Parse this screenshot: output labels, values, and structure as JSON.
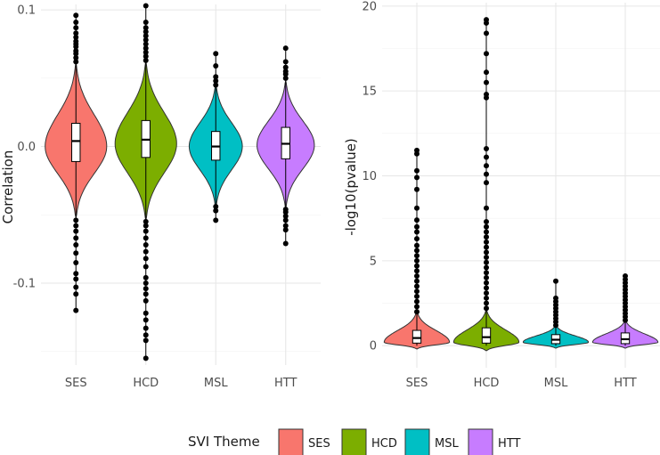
{
  "chart_data": [
    {
      "type": "violin",
      "panel": "left",
      "title": "",
      "xlabel": "",
      "ylabel": "Correlation",
      "ylim": [
        -0.16,
        0.104
      ],
      "yticks": [
        -0.1,
        0.0,
        0.1
      ],
      "ytick_labels": [
        "-0.1",
        "0.0",
        "0.1"
      ],
      "categories": [
        "SES",
        "HCD",
        "MSL",
        "HTT"
      ],
      "series": [
        {
          "name": "SES",
          "whisker_low": -0.052,
          "q1": -0.011,
          "median": 0.004,
          "q3": 0.017,
          "whisker_high": 0.059,
          "violin_min": -0.052,
          "violin_max": 0.061,
          "violin_peak": 0.0,
          "violin_half_width": 0.44,
          "outliers": [
            -0.12,
            -0.108,
            -0.103,
            -0.097,
            -0.093,
            -0.085,
            -0.078,
            -0.072,
            -0.067,
            -0.062,
            -0.058,
            -0.054,
            0.062,
            0.065,
            0.068,
            0.07,
            0.073,
            0.075,
            0.077,
            0.08,
            0.083,
            0.087,
            0.091,
            0.096
          ]
        },
        {
          "name": "HCD",
          "whisker_low": -0.053,
          "q1": -0.008,
          "median": 0.005,
          "q3": 0.019,
          "whisker_high": 0.06,
          "violin_min": -0.054,
          "violin_max": 0.062,
          "violin_peak": 0.002,
          "violin_half_width": 0.44,
          "outliers": [
            -0.155,
            -0.142,
            -0.138,
            -0.133,
            -0.127,
            -0.122,
            -0.113,
            -0.108,
            -0.104,
            -0.1,
            -0.096,
            -0.088,
            -0.082,
            -0.077,
            -0.072,
            -0.067,
            -0.062,
            -0.058,
            -0.055,
            0.063,
            0.066,
            0.069,
            0.072,
            0.075,
            0.078,
            0.081,
            0.084,
            0.087,
            0.091,
            0.103
          ]
        },
        {
          "name": "MSL",
          "whisker_low": -0.043,
          "q1": -0.01,
          "median": 0.0,
          "q3": 0.011,
          "whisker_high": 0.043,
          "violin_min": -0.045,
          "violin_max": 0.046,
          "violin_peak": 0.0,
          "violin_half_width": 0.38,
          "outliers": [
            -0.054,
            -0.047,
            -0.044,
            0.045,
            0.048,
            0.051,
            0.059,
            0.068
          ]
        },
        {
          "name": "HTT",
          "whisker_low": -0.044,
          "q1": -0.009,
          "median": 0.002,
          "q3": 0.014,
          "whisker_high": 0.046,
          "violin_min": -0.045,
          "violin_max": 0.048,
          "violin_peak": 0.001,
          "violin_half_width": 0.41,
          "outliers": [
            -0.071,
            -0.061,
            -0.058,
            -0.054,
            -0.051,
            -0.048,
            -0.046,
            0.05,
            0.053,
            0.055,
            0.058,
            0.062,
            0.072
          ]
        }
      ]
    },
    {
      "type": "violin",
      "panel": "right",
      "title": "",
      "xlabel": "",
      "ylabel": "-log10(pvalue)",
      "ylim": [
        -1.3,
        20.2
      ],
      "yticks": [
        0,
        5,
        10,
        15,
        20
      ],
      "ytick_labels": [
        "0",
        "5",
        "10",
        "15",
        "20"
      ],
      "categories": [
        "SES",
        "HCD",
        "MSL",
        "HTT"
      ],
      "series": [
        {
          "name": "SES",
          "whisker_low": 0.0,
          "q1": 0.15,
          "median": 0.45,
          "q3": 0.9,
          "whisker_high": 1.9,
          "violin_min": -0.2,
          "violin_max": 2.0,
          "violin_peak": 0.2,
          "violin_half_width": 0.47,
          "outliers": [
            2.0,
            2.3,
            2.6,
            2.9,
            3.2,
            3.5,
            3.8,
            4.1,
            4.4,
            4.7,
            5.0,
            5.3,
            5.6,
            5.9,
            6.3,
            6.7,
            7.0,
            7.4,
            8.1,
            9.2,
            9.9,
            10.3,
            11.3,
            11.5
          ]
        },
        {
          "name": "HCD",
          "whisker_low": 0.0,
          "q1": 0.15,
          "median": 0.5,
          "q3": 1.05,
          "whisker_high": 2.0,
          "violin_min": -0.3,
          "violin_max": 2.1,
          "violin_peak": 0.2,
          "violin_half_width": 0.47,
          "outliers": [
            2.2,
            2.5,
            2.8,
            3.1,
            3.4,
            3.7,
            4.0,
            4.3,
            4.6,
            4.9,
            5.2,
            5.5,
            5.8,
            6.1,
            6.4,
            6.7,
            7.0,
            7.3,
            8.1,
            9.6,
            10.1,
            10.6,
            11.1,
            11.6,
            14.6,
            14.8,
            15.5,
            16.1,
            17.2,
            18.4,
            19.0,
            19.2
          ]
        },
        {
          "name": "MSL",
          "whisker_low": 0.0,
          "q1": 0.12,
          "median": 0.35,
          "q3": 0.65,
          "whisker_high": 1.1,
          "violin_min": -0.15,
          "violin_max": 1.2,
          "violin_peak": 0.2,
          "violin_half_width": 0.47,
          "outliers": [
            1.2,
            1.4,
            1.6,
            1.8,
            2.0,
            2.2,
            2.4,
            2.6,
            2.8,
            3.8
          ]
        },
        {
          "name": "HTT",
          "whisker_low": 0.0,
          "q1": 0.12,
          "median": 0.38,
          "q3": 0.75,
          "whisker_high": 1.4,
          "violin_min": -0.15,
          "violin_max": 1.5,
          "violin_peak": 0.2,
          "violin_half_width": 0.47,
          "outliers": [
            1.5,
            1.7,
            1.9,
            2.1,
            2.3,
            2.5,
            2.7,
            2.9,
            3.1,
            3.3,
            3.5,
            3.7,
            3.9,
            4.1
          ]
        }
      ]
    }
  ],
  "legend": {
    "title": "SVI Theme",
    "items": [
      {
        "label": "SES",
        "color": "#F8766D"
      },
      {
        "label": "HCD",
        "color": "#7CAE00"
      },
      {
        "label": "MSL",
        "color": "#00BFC4"
      },
      {
        "label": "HTT",
        "color": "#C77CFF"
      }
    ]
  },
  "colors": {
    "SES": "#F8766D",
    "HCD": "#7CAE00",
    "MSL": "#00BFC4",
    "HTT": "#C77CFF"
  }
}
